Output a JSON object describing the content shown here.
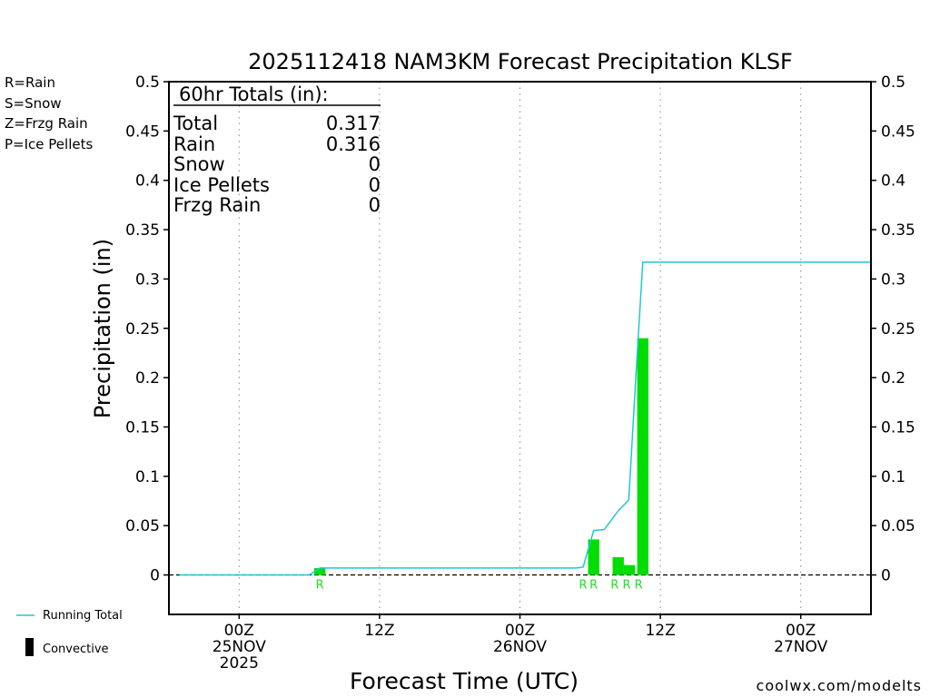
{
  "colors": {
    "rain": "#22dd22",
    "snow": "#3344ee",
    "frzg_rain": "#ff8822",
    "ice_pellets": "#ee2299",
    "running_total": "#1ec8d0",
    "bars": "#00dd00",
    "link": "#cc2222",
    "grid": "#888888"
  },
  "legend_left": {
    "rain": "R=Rain",
    "snow": "S=Snow",
    "frzg_rain": "Z=Frzg Rain",
    "ice_pellets": "P=Ice Pellets"
  },
  "legend_bottom": {
    "running_total": "Running Total",
    "convective": "Convective"
  },
  "totals_box": {
    "header": "60hr Totals (in):",
    "rows": [
      {
        "label": "Total",
        "value": "0.317"
      },
      {
        "label": "Rain",
        "value": "0.316"
      },
      {
        "label": "Snow",
        "value": "0"
      },
      {
        "label": "Ice Pellets",
        "value": "0"
      },
      {
        "label": "Frzg Rain",
        "value": "0"
      }
    ]
  },
  "credit": "coolwx.com/modelts",
  "chart_data": {
    "type": "bar",
    "title": "2025112418 NAM3KM Forecast Precipitation KLSF",
    "xlabel": "Forecast Time (UTC)",
    "ylabel": "Precipitation (in)",
    "x_unit": "hours from 2025-11-25 00Z",
    "xlim": [
      -5,
      45
    ],
    "ylim": [
      -0.04,
      0.5
    ],
    "y_ticks": [
      0,
      0.05,
      0.1,
      0.15,
      0.2,
      0.25,
      0.3,
      0.35,
      0.4,
      0.45,
      0.5
    ],
    "y_tick_labels": [
      "0",
      "0.05",
      "0.1",
      "0.15",
      "0.2",
      "0.25",
      "0.3",
      "0.35",
      "0.4",
      "0.45",
      "0.5"
    ],
    "x_ticks": [
      {
        "x": 0,
        "lines": [
          "00Z",
          "25NOV",
          "2025"
        ]
      },
      {
        "x": 10,
        "lines": [
          "12Z"
        ]
      },
      {
        "x": 20,
        "lines": [
          "00Z",
          "26NOV"
        ]
      },
      {
        "x": 30,
        "lines": [
          "12Z"
        ]
      },
      {
        "x": 40,
        "lines": [
          "00Z",
          "27NOV"
        ]
      }
    ],
    "grid": "vertical dotted",
    "bars": [
      {
        "x": 5.75,
        "value": 0.007,
        "type": "R"
      },
      {
        "x": 25.25,
        "value": 0.036,
        "type": "R"
      },
      {
        "x": 27,
        "value": 0.018,
        "type": "R"
      },
      {
        "x": 27.8,
        "value": 0.01,
        "type": "R"
      },
      {
        "x": 28.75,
        "value": 0.24,
        "type": "R"
      }
    ],
    "precip_type_labels": [
      {
        "x": 5.75,
        "text": "R"
      },
      {
        "x": 24.5,
        "text": "R"
      },
      {
        "x": 25.25,
        "text": "R"
      },
      {
        "x": 26.75,
        "text": "R"
      },
      {
        "x": 27.6,
        "text": "R"
      },
      {
        "x": 28.45,
        "text": "R"
      }
    ],
    "running_total": {
      "x": [
        -4.25,
        5.0,
        5.75,
        24.0,
        24.5,
        25.25,
        26.0,
        27.0,
        27.75,
        28.25,
        28.75,
        45.0
      ],
      "y": [
        0,
        0,
        0.007,
        0.007,
        0.008,
        0.045,
        0.046,
        0.065,
        0.076,
        0.2,
        0.317,
        0.317
      ]
    }
  }
}
